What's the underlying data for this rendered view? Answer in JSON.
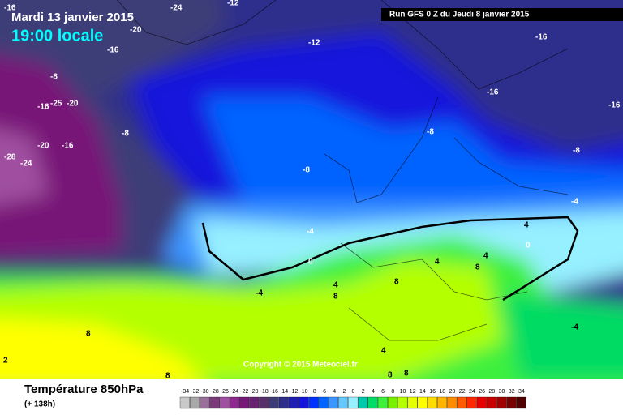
{
  "header": {
    "date": "Mardi 13 janvier 2015",
    "time": "19:00 locale",
    "run": "Run GFS 0 Z du Jeudi 8 janvier 2015"
  },
  "footer": {
    "title": "Température 850hPa",
    "lead": "(+ 138h)"
  },
  "copyright": "Copyright © 2015 Meteociel.fr",
  "contour_labels": [
    "-16",
    "-24",
    "-12",
    "-20",
    "-16",
    "-12",
    "-16",
    "-8",
    "-25",
    "-20",
    "-16",
    "-28",
    "-24",
    "-20",
    "-16",
    "-8",
    "-8",
    "-16",
    "-16",
    "-8",
    "-8",
    "-4",
    "-4",
    "0",
    "-4",
    "4",
    "8",
    "4",
    "8",
    "8",
    "4",
    "0",
    "-4",
    "4",
    "8",
    "8",
    "8",
    "8",
    "4",
    "2"
  ],
  "legend": {
    "values": [
      -34,
      -32,
      -30,
      -28,
      -26,
      -24,
      -22,
      -20,
      -18,
      -16,
      -14,
      -12,
      -10,
      -8,
      -6,
      -4,
      -2,
      0,
      2,
      4,
      6,
      8,
      10,
      12,
      14,
      16,
      18,
      20,
      22,
      24,
      26,
      28,
      30,
      32,
      34
    ],
    "colors": [
      "#c8c8c8",
      "#a8a8a8",
      "#9a6e9a",
      "#7a3a7a",
      "#a050a0",
      "#902890",
      "#781878",
      "#682070",
      "#58306a",
      "#3c3c78",
      "#2e2e8c",
      "#1e1eb4",
      "#1414dc",
      "#0032ff",
      "#0064ff",
      "#3c96ff",
      "#64c8ff",
      "#96f0ff",
      "#00c8aa",
      "#00dc64",
      "#3cf03c",
      "#78f000",
      "#b4ff00",
      "#e6ff00",
      "#ffff00",
      "#ffdc00",
      "#ffb400",
      "#ff8c00",
      "#ff5a00",
      "#ff2800",
      "#e60000",
      "#c80000",
      "#a00000",
      "#780000",
      "#500000"
    ]
  }
}
